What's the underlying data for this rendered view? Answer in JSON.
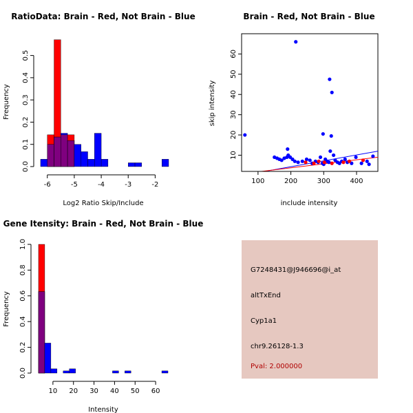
{
  "colors": {
    "brain": "#ff0000",
    "not_brain": "#0000ff",
    "overlap": "#7f007f",
    "panel_bg": "#e6c8c0",
    "pval_text": "#b00000"
  },
  "chart_data": [
    {
      "type": "histogram",
      "title": "RatioData: Brain - Red, Not Brain - Blue",
      "xlabel": "Log2 Ratio Skip/Include",
      "ylabel": "Frequency",
      "xlim": [
        -6.3,
        -1.5
      ],
      "ylim": [
        0,
        0.57
      ],
      "xticks": [
        -6,
        -5,
        -4,
        -3,
        -2
      ],
      "xtick_labels": [
        "-6",
        "-5",
        "-4",
        "-3",
        "-2"
      ],
      "yticks": [
        0.0,
        0.1,
        0.2,
        0.3,
        0.4,
        0.5
      ],
      "ytick_labels": [
        "0.0",
        "0.1",
        "0.2",
        "0.3",
        "0.4",
        "0.5"
      ],
      "bin_edges": [
        -6.25,
        -6.0,
        -5.75,
        -5.5,
        -5.25,
        -5.0,
        -4.75,
        -4.5,
        -4.25,
        -4.0,
        -3.75,
        -3.5,
        -3.25,
        -3.0,
        -2.75,
        -2.5,
        -2.25,
        -2.0,
        -1.75,
        -1.5
      ],
      "series": [
        {
          "name": "Brain",
          "values": [
            0,
            0.143,
            0.571,
            0.143,
            0.143,
            0,
            0,
            0,
            0,
            0,
            0,
            0,
            0,
            0,
            0,
            0,
            0,
            0,
            0
          ]
        },
        {
          "name": "Not Brain",
          "values": [
            0.033,
            0.1,
            0.133,
            0.15,
            0.117,
            0.1,
            0.067,
            0.033,
            0.15,
            0.033,
            0,
            0,
            0,
            0.017,
            0.017,
            0,
            0,
            0,
            0.033
          ]
        }
      ]
    },
    {
      "type": "scatter",
      "title": "Brain - Red, Not Brain - Blue",
      "xlabel": "include intensity",
      "ylabel": "skip intensity",
      "xlim": [
        50,
        465
      ],
      "ylim": [
        2,
        70
      ],
      "xticks": [
        100,
        200,
        300,
        400
      ],
      "xtick_labels": [
        "100",
        "200",
        "300",
        "400"
      ],
      "yticks": [
        10,
        20,
        30,
        40,
        50,
        60
      ],
      "ytick_labels": [
        "10",
        "20",
        "30",
        "40",
        "50",
        "60"
      ],
      "series": [
        {
          "name": "Not Brain",
          "points": [
            [
              60,
              20
            ],
            [
              215,
              66
            ],
            [
              318,
              47.5
            ],
            [
              325,
              41
            ],
            [
              298,
              20.5
            ],
            [
              323,
              19.5
            ],
            [
              190,
              13
            ],
            [
              320,
              12
            ],
            [
              150,
              9
            ],
            [
              158,
              8.5
            ],
            [
              165,
              8
            ],
            [
              172,
              7.5
            ],
            [
              180,
              8.5
            ],
            [
              188,
              9
            ],
            [
              192,
              10
            ],
            [
              198,
              9
            ],
            [
              205,
              8
            ],
            [
              212,
              7
            ],
            [
              222,
              6.5
            ],
            [
              235,
              7
            ],
            [
              248,
              8
            ],
            [
              258,
              7.5
            ],
            [
              265,
              6
            ],
            [
              275,
              7
            ],
            [
              283,
              6.5
            ],
            [
              290,
              9
            ],
            [
              296,
              6
            ],
            [
              300,
              5.5
            ],
            [
              305,
              8
            ],
            [
              310,
              7
            ],
            [
              316,
              6.5
            ],
            [
              330,
              10
            ],
            [
              335,
              7.5
            ],
            [
              342,
              6.5
            ],
            [
              348,
              6
            ],
            [
              355,
              7
            ],
            [
              365,
              8
            ],
            [
              372,
              6.5
            ],
            [
              385,
              6
            ],
            [
              398,
              9
            ],
            [
              415,
              6
            ],
            [
              432,
              7
            ],
            [
              438,
              5.5
            ],
            [
              450,
              9.5
            ]
          ]
        },
        {
          "name": "Brain",
          "points": [
            [
              245,
              6.5
            ],
            [
              270,
              6
            ],
            [
              285,
              7
            ],
            [
              302,
              6.5
            ],
            [
              325,
              6
            ],
            [
              360,
              6.5
            ],
            [
              378,
              7
            ],
            [
              420,
              7.5
            ]
          ]
        }
      ],
      "fit_lines": [
        {
          "name": "Not Brain",
          "from": [
            120,
            2
          ],
          "to": [
            465,
            12
          ]
        },
        {
          "name": "Brain",
          "from": [
            110,
            2
          ],
          "to": [
            465,
            9
          ]
        }
      ]
    },
    {
      "type": "histogram",
      "title": "Gene Itensity: Brain - Red, Not Brain - Blue",
      "xlabel": "Intensity",
      "ylabel": "Frequency",
      "xlim": [
        2,
        67
      ],
      "ylim": [
        0,
        1.0
      ],
      "xticks": [
        10,
        20,
        30,
        40,
        50,
        60
      ],
      "xtick_labels": [
        "10",
        "20",
        "30",
        "40",
        "50",
        "60"
      ],
      "yticks": [
        0.0,
        0.2,
        0.4,
        0.6,
        0.8,
        1.0
      ],
      "ytick_labels": [
        "0.0",
        "0.2",
        "0.4",
        "0.6",
        "0.8",
        "1.0"
      ],
      "bin_edges": [
        3,
        6,
        9,
        12,
        15,
        18,
        21,
        24,
        27,
        30,
        33,
        36,
        39,
        42,
        45,
        48,
        51,
        54,
        57,
        60,
        63,
        66
      ],
      "series": [
        {
          "name": "Brain",
          "values": [
            1.0,
            0,
            0,
            0,
            0,
            0,
            0,
            0,
            0,
            0,
            0,
            0,
            0,
            0,
            0,
            0,
            0,
            0,
            0,
            0,
            0
          ]
        },
        {
          "name": "Not Brain",
          "values": [
            0.633,
            0.233,
            0.033,
            0,
            0.017,
            0.033,
            0,
            0,
            0,
            0,
            0,
            0,
            0.017,
            0,
            0.017,
            0,
            0,
            0,
            0,
            0,
            0.017
          ]
        }
      ]
    }
  ],
  "info_panel": {
    "probe_id": "G7248431@J946696@i_at",
    "event_type": "altTxEnd",
    "gene": "Cyp1a1",
    "location": "chr9.26128-1.3",
    "pval": "Pval: 2.000000"
  }
}
